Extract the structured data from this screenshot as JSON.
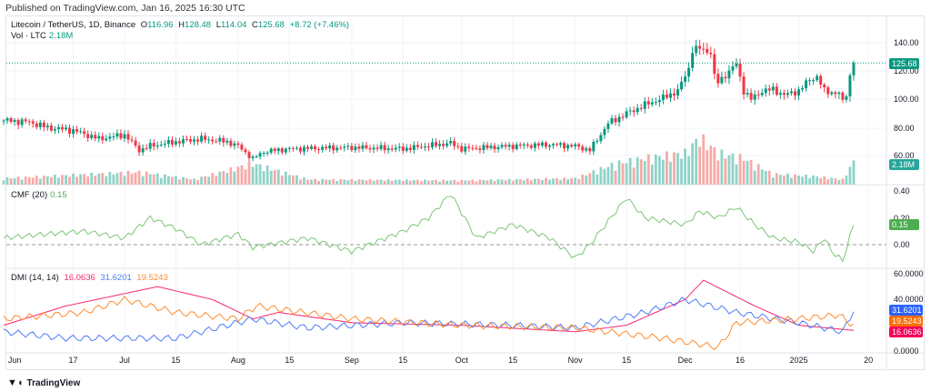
{
  "header": {
    "published": "Published on TradingView.com, Jan 16, 2025 16:30 UTC"
  },
  "legend": {
    "symbol": "Litecoin / TetherUS, 1D, Binance",
    "o_label": "O",
    "o": "116.96",
    "h_label": "H",
    "h": "128.48",
    "l_label": "L",
    "l": "114.04",
    "c_label": "C",
    "c": "125.68",
    "change": "+8.72 (+7.46%)",
    "vol_label": "Vol · LTC",
    "vol": "2.18M"
  },
  "cmf_legend": {
    "label": "CMF (20)",
    "value": "0.15"
  },
  "dmi_legend": {
    "label": "DMI (14, 14)",
    "v1": "16.0636",
    "v2": "31.6201",
    "v3": "19.5243"
  },
  "price_axis": [
    "140.00",
    "120.00",
    "100.00",
    "80.00",
    "60.00"
  ],
  "cmf_axis": [
    "0.40",
    "0.20",
    "0.00"
  ],
  "dmi_axis": [
    "60.0000",
    "40.0000",
    "0.0000"
  ],
  "badges": {
    "price": "125.68",
    "volume": "2.18M",
    "cmf": "0.15",
    "dmi1": "31.6201",
    "dmi2": "19.5243",
    "dmi3": "16.0636"
  },
  "colors": {
    "up": "#089981",
    "down": "#f23645",
    "cmf": "#7cc576",
    "dmi_pink": "#f7296f",
    "dmi_blue": "#4d7cf5",
    "dmi_orange": "#ff8c2e"
  },
  "time_axis": [
    {
      "text": "Jun",
      "date": "2024-06-01"
    },
    {
      "text": "17",
      "date": "2024-06-17"
    },
    {
      "text": "Jul",
      "date": "2024-07-01"
    },
    {
      "text": "15",
      "date": "2024-07-15"
    },
    {
      "text": "Aug",
      "date": "2024-08-01"
    },
    {
      "text": "15",
      "date": "2024-08-15"
    },
    {
      "text": "Sep",
      "date": "2024-09-01"
    },
    {
      "text": "15",
      "date": "2024-09-15"
    },
    {
      "text": "Oct",
      "date": "2024-10-01"
    },
    {
      "text": "15",
      "date": "2024-10-15"
    },
    {
      "text": "Nov",
      "date": "2024-11-01"
    },
    {
      "text": "15",
      "date": "2024-11-15"
    },
    {
      "text": "Dec",
      "date": "2024-12-01"
    },
    {
      "text": "16",
      "date": "2024-12-16"
    },
    {
      "text": "2025",
      "date": "2025-01-01"
    },
    {
      "text": "20",
      "date": "2025-01-20"
    }
  ],
  "footer": {
    "brand": "TradingView"
  },
  "chart_data": {
    "type": "candlestick",
    "last_price": 125.68,
    "price_range": [
      50,
      150
    ],
    "price_anchors": [
      [
        "2024-05-29",
        85
      ],
      [
        "2024-06-05",
        84
      ],
      [
        "2024-06-10",
        80
      ],
      [
        "2024-06-17",
        78
      ],
      [
        "2024-06-24",
        72
      ],
      [
        "2024-07-01",
        75
      ],
      [
        "2024-07-05",
        64
      ],
      [
        "2024-07-08",
        67
      ],
      [
        "2024-07-15",
        70
      ],
      [
        "2024-07-22",
        72
      ],
      [
        "2024-07-29",
        70
      ],
      [
        "2024-08-01",
        67
      ],
      [
        "2024-08-05",
        58
      ],
      [
        "2024-08-08",
        63
      ],
      [
        "2024-08-15",
        65
      ],
      [
        "2024-09-01",
        66
      ],
      [
        "2024-09-15",
        65
      ],
      [
        "2024-09-28",
        69
      ],
      [
        "2024-10-01",
        65
      ],
      [
        "2024-10-15",
        67
      ],
      [
        "2024-10-25",
        68
      ],
      [
        "2024-11-01",
        67
      ],
      [
        "2024-11-05",
        64
      ],
      [
        "2024-11-10",
        83
      ],
      [
        "2024-11-15",
        90
      ],
      [
        "2024-11-20",
        96
      ],
      [
        "2024-11-25",
        101
      ],
      [
        "2024-11-29",
        106
      ],
      [
        "2024-12-02",
        122
      ],
      [
        "2024-12-03",
        135
      ],
      [
        "2024-12-05",
        136
      ],
      [
        "2024-12-08",
        133
      ],
      [
        "2024-12-09",
        116
      ],
      [
        "2024-12-10",
        112
      ],
      [
        "2024-12-15",
        125
      ],
      [
        "2024-12-17",
        106
      ],
      [
        "2024-12-19",
        100
      ],
      [
        "2024-12-22",
        106
      ],
      [
        "2024-12-25",
        107
      ],
      [
        "2024-12-28",
        103
      ],
      [
        "2025-01-01",
        106
      ],
      [
        "2025-01-04",
        114
      ],
      [
        "2025-01-06",
        116
      ],
      [
        "2025-01-08",
        106
      ],
      [
        "2025-01-12",
        104
      ],
      [
        "2025-01-13",
        98
      ],
      [
        "2025-01-14",
        104
      ],
      [
        "2025-01-15",
        116.96
      ],
      [
        "2025-01-16",
        125.68
      ]
    ],
    "volume_M_anchors": [
      [
        "2024-05-29",
        0.6
      ],
      [
        "2024-07-05",
        1.2
      ],
      [
        "2024-07-20",
        0.5
      ],
      [
        "2024-08-05",
        2.0
      ],
      [
        "2024-08-20",
        0.5
      ],
      [
        "2024-10-01",
        0.4
      ],
      [
        "2024-11-01",
        0.6
      ],
      [
        "2024-11-12",
        2.0
      ],
      [
        "2024-11-20",
        2.5
      ],
      [
        "2024-12-01",
        3.0
      ],
      [
        "2024-12-05",
        4.5
      ],
      [
        "2024-12-10",
        3.0
      ],
      [
        "2024-12-17",
        2.5
      ],
      [
        "2024-12-25",
        1.0
      ],
      [
        "2025-01-05",
        0.8
      ],
      [
        "2025-01-13",
        0.5
      ],
      [
        "2025-01-16",
        2.18
      ]
    ],
    "cmf": [
      [
        "2024-05-29",
        0.05
      ],
      [
        "2024-06-10",
        0.08
      ],
      [
        "2024-06-20",
        0.1
      ],
      [
        "2024-07-01",
        0.05
      ],
      [
        "2024-07-08",
        0.2
      ],
      [
        "2024-07-15",
        0.12
      ],
      [
        "2024-07-22",
        0.0
      ],
      [
        "2024-08-01",
        0.08
      ],
      [
        "2024-08-05",
        -0.02
      ],
      [
        "2024-08-20",
        0.05
      ],
      [
        "2024-09-01",
        -0.05
      ],
      [
        "2024-09-15",
        0.1
      ],
      [
        "2024-09-22",
        0.2
      ],
      [
        "2024-09-28",
        0.38
      ],
      [
        "2024-10-05",
        0.05
      ],
      [
        "2024-10-15",
        0.15
      ],
      [
        "2024-10-25",
        0.05
      ],
      [
        "2024-11-01",
        -0.1
      ],
      [
        "2024-11-05",
        0.0
      ],
      [
        "2024-11-15",
        0.35
      ],
      [
        "2024-11-20",
        0.2
      ],
      [
        "2024-12-01",
        0.15
      ],
      [
        "2024-12-05",
        0.25
      ],
      [
        "2024-12-10",
        0.2
      ],
      [
        "2024-12-15",
        0.28
      ],
      [
        "2024-12-20",
        0.15
      ],
      [
        "2024-12-25",
        0.05
      ],
      [
        "2025-01-01",
        0.02
      ],
      [
        "2025-01-05",
        -0.05
      ],
      [
        "2025-01-08",
        0.05
      ],
      [
        "2025-01-10",
        -0.05
      ],
      [
        "2025-01-13",
        -0.12
      ],
      [
        "2025-01-16",
        0.15
      ]
    ],
    "dmi_series": [
      {
        "values": [
          [
            "2024-05-29",
            20
          ],
          [
            "2024-06-15",
            35
          ],
          [
            "2024-07-10",
            50
          ],
          [
            "2024-07-25",
            40
          ],
          [
            "2024-08-05",
            25
          ],
          [
            "2024-08-12",
            30
          ],
          [
            "2024-09-01",
            22
          ],
          [
            "2024-10-01",
            20
          ],
          [
            "2024-11-01",
            15
          ],
          [
            "2024-11-15",
            20
          ],
          [
            "2024-12-01",
            40
          ],
          [
            "2024-12-06",
            55
          ],
          [
            "2024-12-20",
            35
          ],
          [
            "2025-01-01",
            20
          ],
          [
            "2025-01-16",
            16.06
          ]
        ]
      },
      {
        "values": [
          [
            "2024-05-29",
            15
          ],
          [
            "2024-06-15",
            10
          ],
          [
            "2024-07-15",
            10
          ],
          [
            "2024-08-05",
            25
          ],
          [
            "2024-08-20",
            18
          ],
          [
            "2024-09-15",
            22
          ],
          [
            "2024-10-15",
            20
          ],
          [
            "2024-11-01",
            18
          ],
          [
            "2024-11-20",
            30
          ],
          [
            "2024-12-01",
            40
          ],
          [
            "2024-12-15",
            30
          ],
          [
            "2025-01-01",
            22
          ],
          [
            "2025-01-13",
            15
          ],
          [
            "2025-01-16",
            31.62
          ]
        ]
      },
      {
        "values": [
          [
            "2024-05-29",
            25
          ],
          [
            "2024-06-20",
            30
          ],
          [
            "2024-07-01",
            40
          ],
          [
            "2024-07-15",
            30
          ],
          [
            "2024-08-01",
            25
          ],
          [
            "2024-08-06",
            35
          ],
          [
            "2024-09-01",
            25
          ],
          [
            "2024-10-01",
            20
          ],
          [
            "2024-11-01",
            18
          ],
          [
            "2024-11-25",
            10
          ],
          [
            "2024-12-10",
            3
          ],
          [
            "2024-12-15",
            22
          ],
          [
            "2025-01-01",
            25
          ],
          [
            "2025-01-12",
            28
          ],
          [
            "2025-01-16",
            19.52
          ]
        ]
      }
    ],
    "cmf_range": [
      -0.2,
      0.45
    ],
    "dmi_range": [
      0,
      60
    ]
  }
}
